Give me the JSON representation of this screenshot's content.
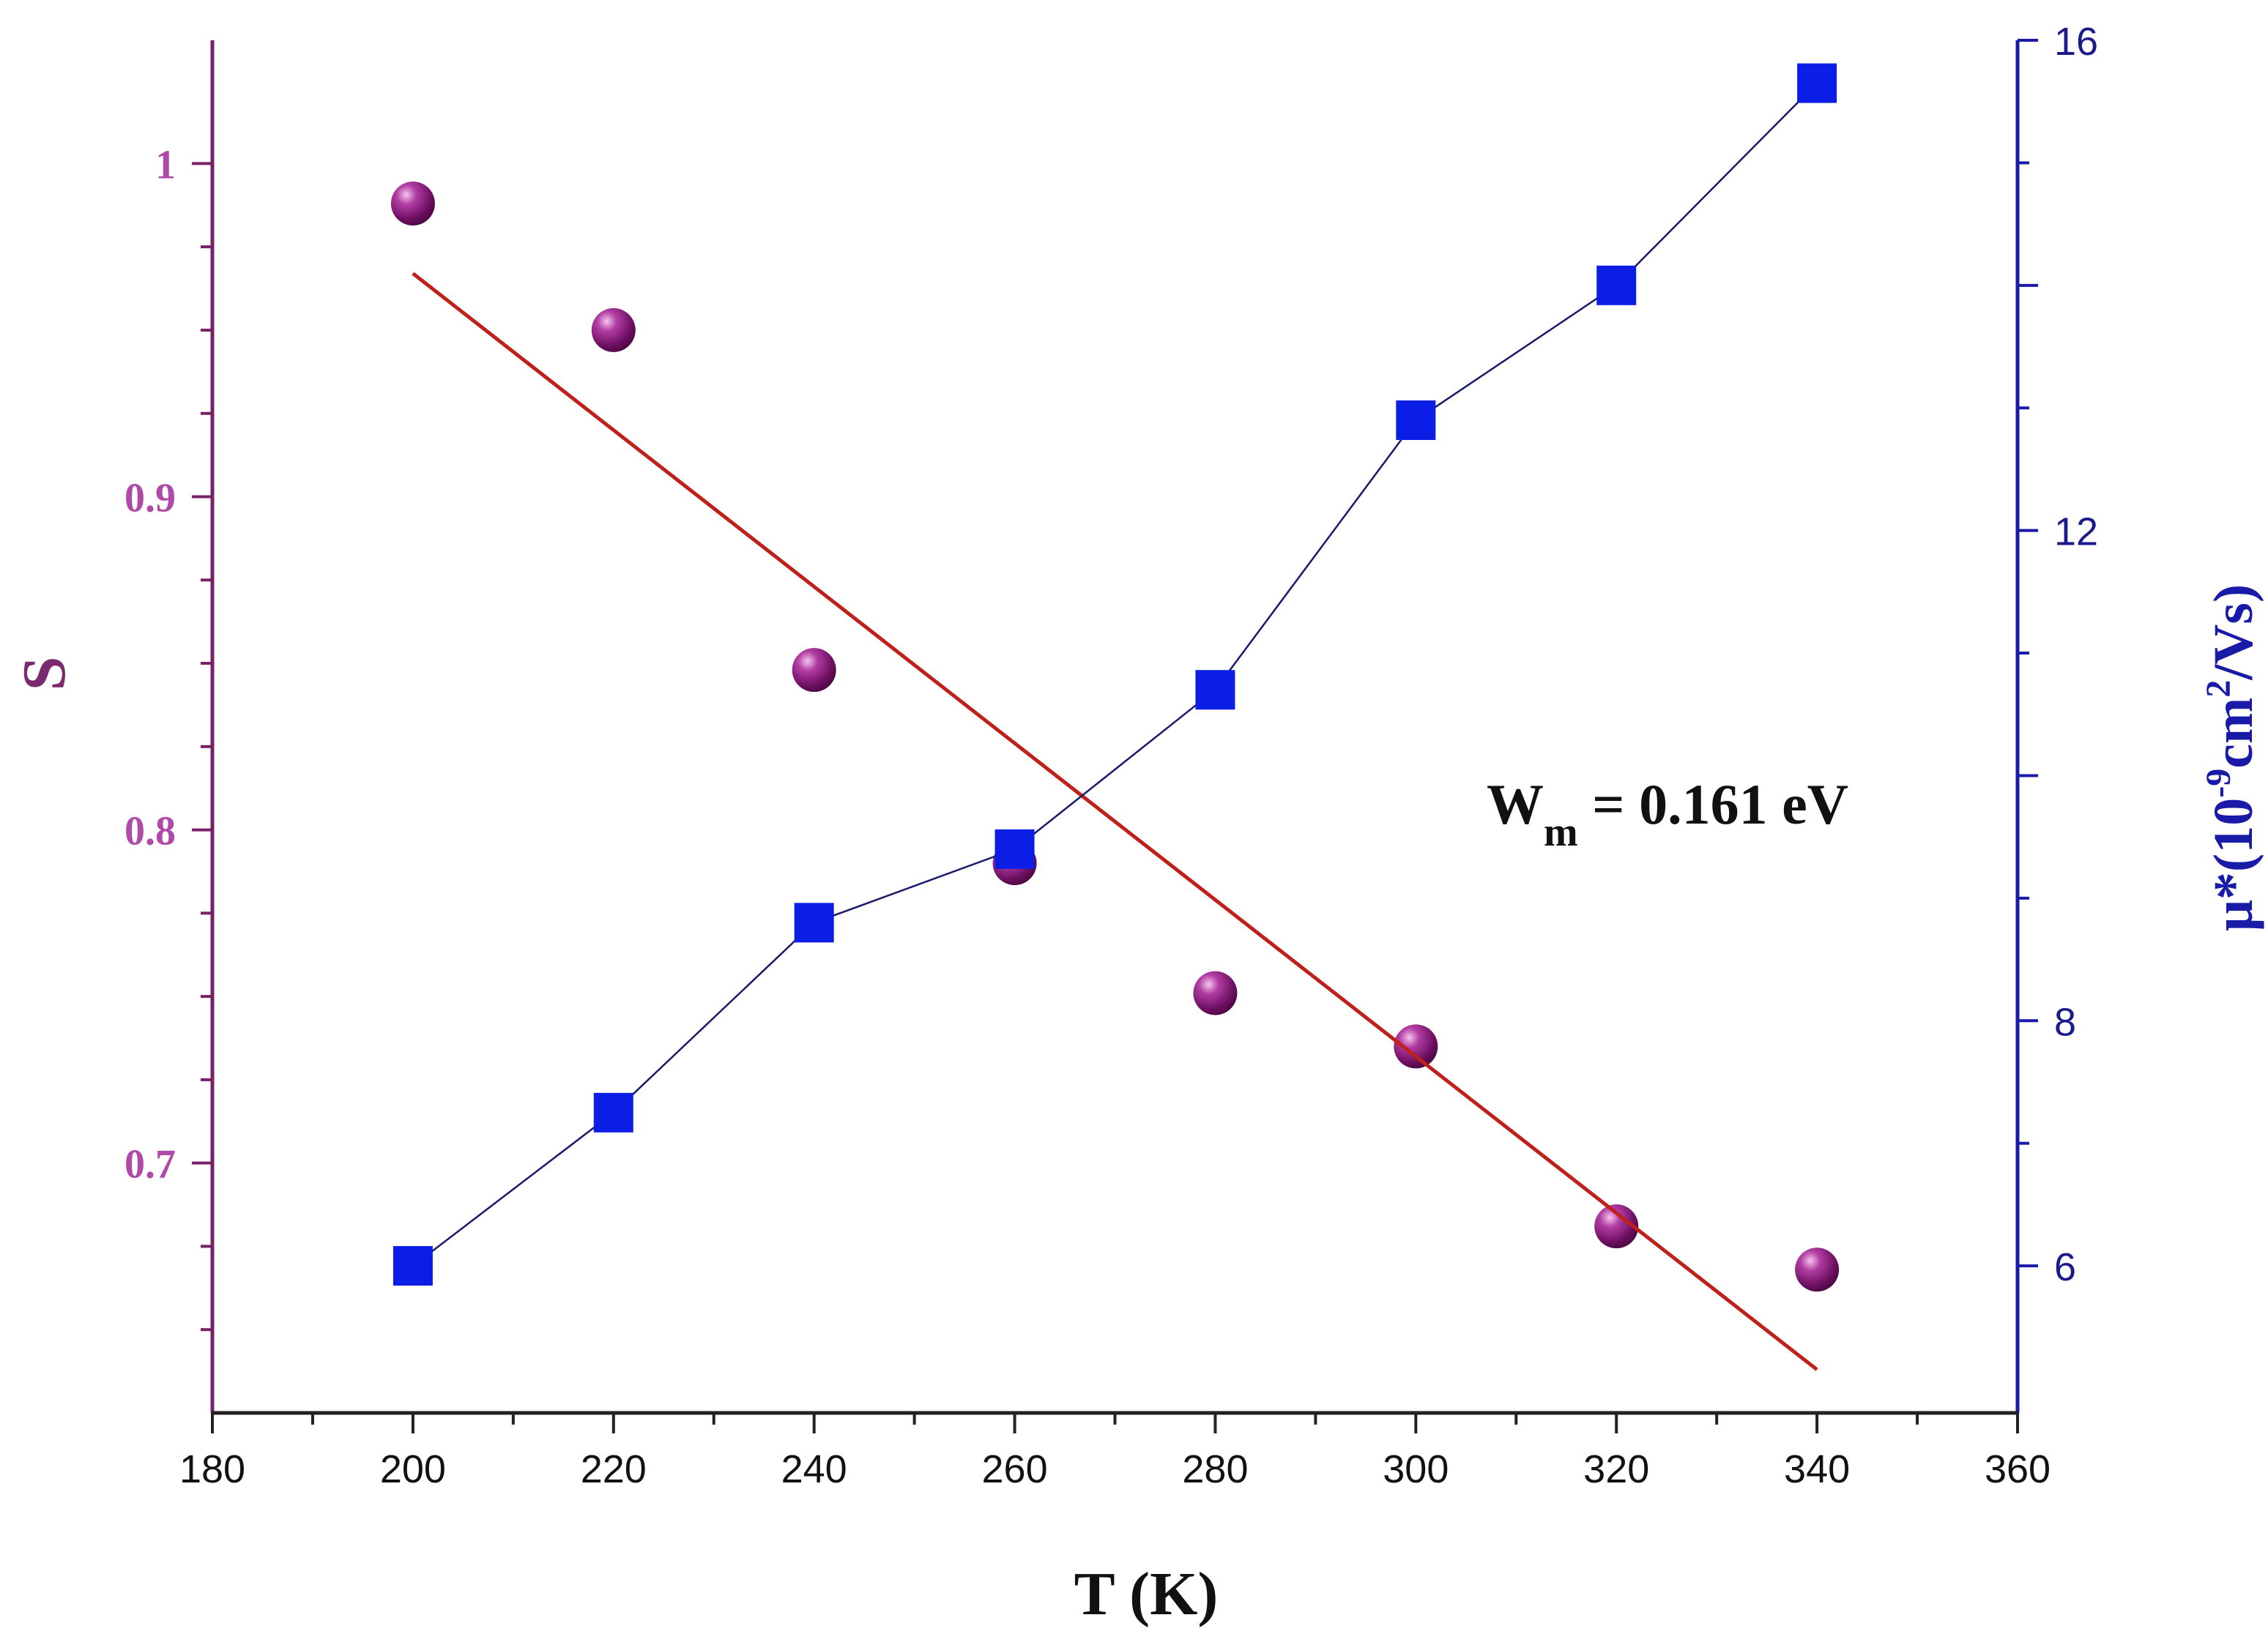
{
  "chart_data": {
    "type": "scatter",
    "xlabel": "T (K)",
    "ylabel_left": "S",
    "ylabel_right": {
      "prefix": "μ*(10",
      "exp1": "-9",
      "mid": "cm",
      "exp2": "2",
      "suffix": "/Vs)"
    },
    "x_ticks": [
      "180",
      "200",
      "220",
      "240",
      "260",
      "280",
      "300",
      "320",
      "340",
      "360"
    ],
    "xlim": [
      180,
      360
    ],
    "y_left_ticks": [
      "0.7",
      "0.8",
      "0.9",
      "1"
    ],
    "y_left_lim": [
      0.625,
      1.037
    ],
    "y_right_ticks": [
      "6",
      "8",
      "12",
      "16"
    ],
    "y_right_lim": [
      4.8,
      16
    ],
    "annotation": {
      "main": "W",
      "sub": "m",
      "rest": " = 0.161 eV"
    },
    "series": [
      {
        "axis": "left",
        "marker": "sphere",
        "color": "#8b1a7e",
        "x": [
          200,
          220,
          240,
          260,
          280,
          300,
          320,
          340
        ],
        "y": [
          0.988,
          0.95,
          0.848,
          0.79,
          0.751,
          0.735,
          0.681,
          0.668
        ]
      },
      {
        "axis": "left",
        "marker": "fit-line",
        "color": "#c0201a",
        "x": [
          200,
          340
        ],
        "y": [
          0.967,
          0.638
        ]
      },
      {
        "axis": "right",
        "marker": "square",
        "color": "#0a1ee6",
        "x": [
          200,
          220,
          240,
          260,
          280,
          300,
          320,
          340
        ],
        "y": [
          6.0,
          7.25,
          8.8,
          9.4,
          10.7,
          12.9,
          14.0,
          15.65
        ]
      }
    ],
    "colors": {
      "left_axis": "#7a1f6a",
      "right_axis": "#1a1aa8",
      "left_ticks": "#b04aa8",
      "connector": "#1a1a6a"
    }
  }
}
